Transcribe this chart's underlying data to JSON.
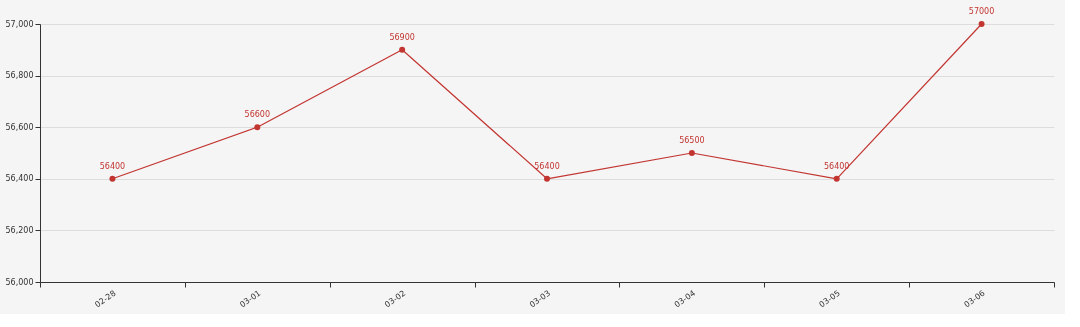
{
  "chart_data": {
    "type": "line",
    "categories": [
      "02-28",
      "03-01",
      "03-02",
      "03-03",
      "03-04",
      "03-05",
      "03-06"
    ],
    "series": [
      {
        "color": "#c23531",
        "values": [
          56400,
          56600,
          56900,
          56400,
          56500,
          56400,
          57000
        ]
      }
    ],
    "ylim": [
      56000,
      57000
    ],
    "yticks": [
      {
        "value": 56000,
        "label": "56,000"
      },
      {
        "value": 56200,
        "label": "56,200"
      },
      {
        "value": 56400,
        "label": "56,400"
      },
      {
        "value": 56600,
        "label": "56,600"
      },
      {
        "value": 56800,
        "label": "56,800"
      },
      {
        "value": 57000,
        "label": "57,000"
      }
    ],
    "grid": "y",
    "marker": "circle",
    "data_labels": true,
    "legend": false
  }
}
